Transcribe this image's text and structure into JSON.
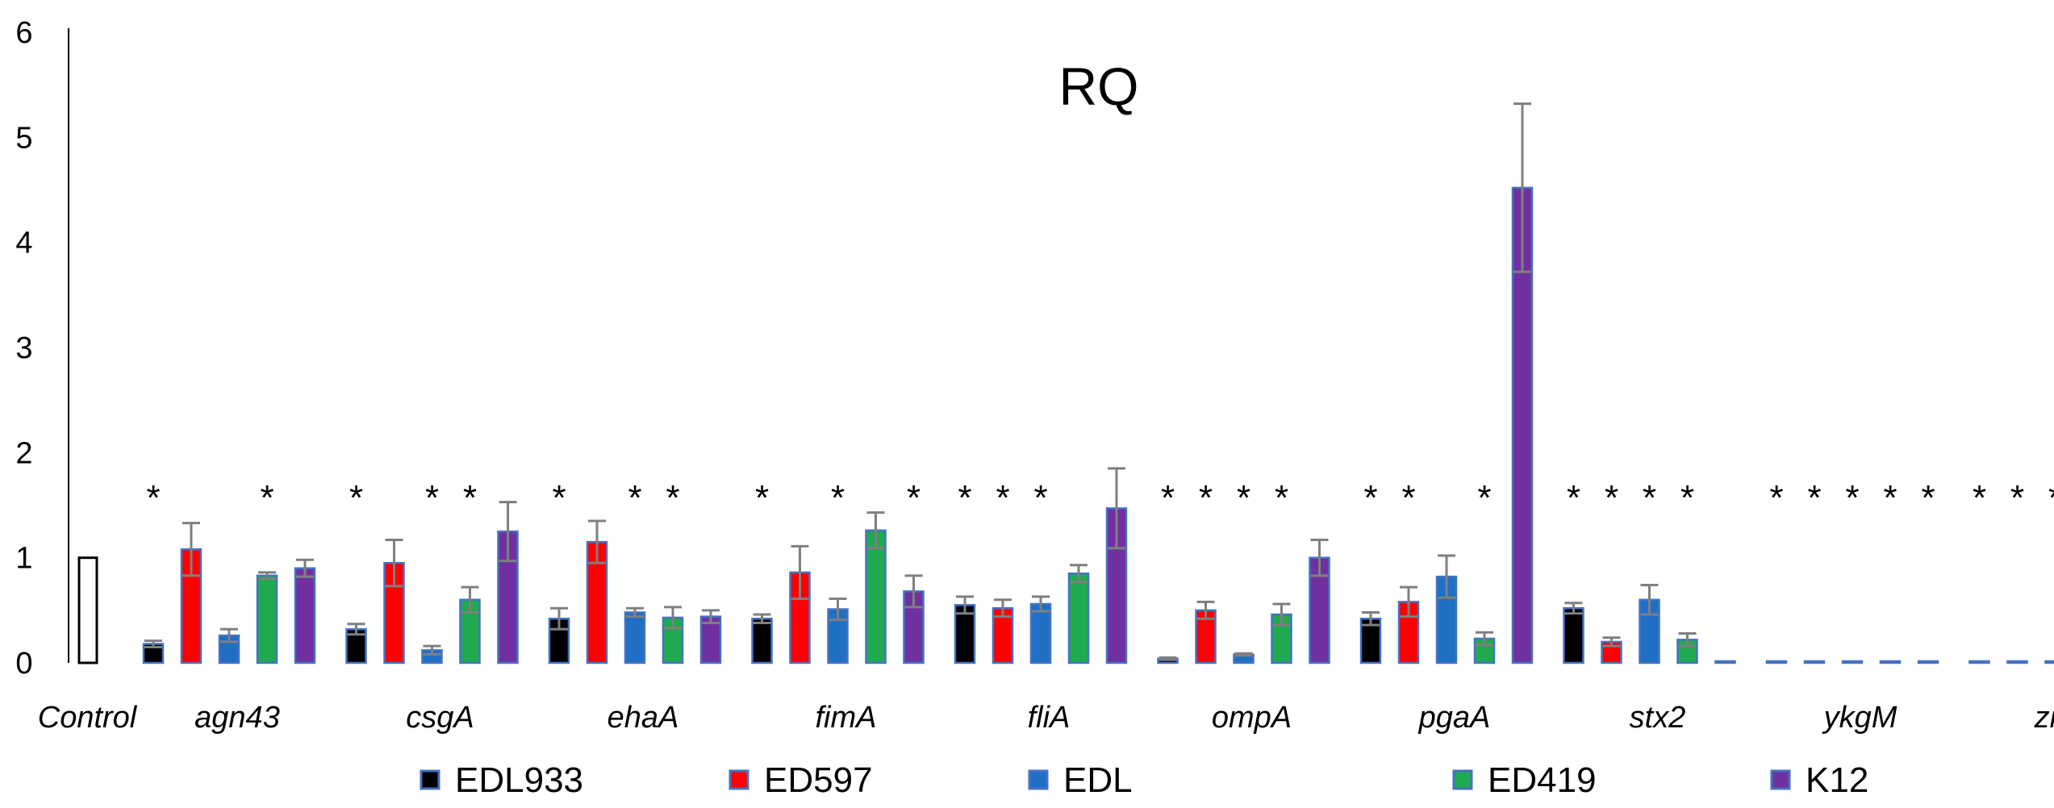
{
  "chart_data": {
    "type": "bar",
    "title": "RQ",
    "xlabel": "",
    "ylabel": "",
    "ylim": [
      0,
      6
    ],
    "yticks": [
      0,
      1,
      2,
      3,
      4,
      5,
      6
    ],
    "control": {
      "label": "Control",
      "value": 1
    },
    "categories": [
      "agn43",
      "csgA",
      "ehaA",
      "fimA",
      "fliA",
      "ompA",
      "pgaA",
      "stx2",
      "ykgM",
      "zinT"
    ],
    "series": [
      {
        "name": "EDL933",
        "color": "#000000",
        "values": [
          0.18,
          0.32,
          0.42,
          0.42,
          0.55,
          0.04,
          0.42,
          0.52,
          0.01,
          0.01
        ],
        "errors": [
          0.03,
          0.05,
          0.1,
          0.04,
          0.08,
          0.01,
          0.06,
          0.05,
          0.0,
          0.0
        ]
      },
      {
        "name": "ED597",
        "color": "#ff0000",
        "values": [
          1.08,
          0.95,
          1.15,
          0.86,
          0.52,
          0.5,
          0.58,
          0.2,
          0.01,
          0.01
        ],
        "errors": [
          0.25,
          0.22,
          0.2,
          0.25,
          0.08,
          0.08,
          0.14,
          0.04,
          0.0,
          0.0
        ]
      },
      {
        "name": "EDL",
        "color": "#1f6fc5",
        "values": [
          0.26,
          0.12,
          0.48,
          0.51,
          0.56,
          0.08,
          0.82,
          0.6,
          0.01,
          0.01
        ],
        "errors": [
          0.06,
          0.04,
          0.04,
          0.1,
          0.07,
          0.01,
          0.2,
          0.14,
          0.0,
          0.0
        ]
      },
      {
        "name": "ED419",
        "color": "#1faa4f",
        "values": [
          0.83,
          0.6,
          0.43,
          1.26,
          0.85,
          0.46,
          0.23,
          0.22,
          0.01,
          0.01
        ],
        "errors": [
          0.03,
          0.12,
          0.1,
          0.17,
          0.08,
          0.1,
          0.06,
          0.06,
          0.0,
          0.0
        ]
      },
      {
        "name": "K12",
        "color": "#7030a0",
        "values": [
          0.9,
          1.25,
          0.44,
          0.68,
          1.47,
          1.0,
          4.52,
          0.01,
          0.01,
          0.01
        ],
        "errors": [
          0.08,
          0.28,
          0.06,
          0.15,
          0.38,
          0.17,
          0.8,
          0.0,
          0.0,
          0.0
        ]
      }
    ],
    "significance": [
      [
        true,
        false,
        false,
        true,
        false
      ],
      [
        true,
        false,
        true,
        true,
        false
      ],
      [
        true,
        false,
        true,
        true,
        false
      ],
      [
        true,
        false,
        true,
        false,
        true
      ],
      [
        true,
        true,
        true,
        false,
        false
      ],
      [
        true,
        true,
        true,
        true,
        false
      ],
      [
        true,
        true,
        false,
        true,
        false
      ],
      [
        true,
        true,
        true,
        true,
        false
      ],
      [
        true,
        true,
        true,
        true,
        true
      ],
      [
        true,
        true,
        true,
        true,
        true
      ]
    ],
    "significance_marker": "*",
    "legend": [
      "EDL933",
      "ED597",
      "EDL",
      "ED419",
      "K12"
    ],
    "legend_position": "bottom",
    "grid": false
  }
}
